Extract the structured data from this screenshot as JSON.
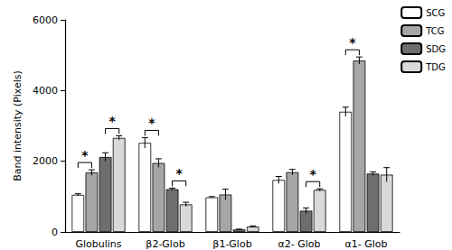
{
  "chart_data": {
    "type": "bar",
    "y_label": "Band intensity (Pixels)",
    "categories": [
      "Globulins",
      "β2-Glob",
      "β1-Glob",
      "α2- Glob",
      "α1- Glob"
    ],
    "series": [
      {
        "name": "SCG",
        "color": "#ffffff",
        "values": [
          1050,
          2520,
          980,
          1470,
          3400
        ],
        "errors": [
          30,
          150,
          20,
          100,
          130
        ]
      },
      {
        "name": "TCG",
        "color": "#a6a6a6",
        "values": [
          1680,
          1950,
          1060,
          1690,
          4850
        ],
        "errors": [
          80,
          120,
          150,
          80,
          100
        ]
      },
      {
        "name": "SDG",
        "color": "#6e6e6e",
        "values": [
          2120,
          1210,
          70,
          600,
          1650
        ],
        "errors": [
          120,
          30,
          10,
          80,
          50
        ]
      },
      {
        "name": "TDG",
        "color": "#d9d9d9",
        "values": [
          2660,
          780,
          150,
          1190,
          1620
        ],
        "errors": [
          60,
          60,
          20,
          30,
          200
        ]
      }
    ],
    "ylim": [
      0,
      6000
    ],
    "yticks": [
      0,
      2000,
      4000,
      6000
    ],
    "grid": false,
    "legend": "top-right",
    "annotations": [
      {
        "category": "Globulins",
        "from": "SCG",
        "to": "TCG",
        "text": "*"
      },
      {
        "category": "Globulins",
        "from": "SDG",
        "to": "TDG",
        "text": "*"
      },
      {
        "category": "β2-Glob",
        "from": "SCG",
        "to": "TCG",
        "text": "*"
      },
      {
        "category": "β2-Glob",
        "from": "SDG",
        "to": "TDG",
        "text": "*"
      },
      {
        "category": "α2- Glob",
        "from": "SDG",
        "to": "TDG",
        "text": "*"
      },
      {
        "category": "α1- Glob",
        "from": "SCG",
        "to": "TCG",
        "text": "*"
      }
    ]
  }
}
